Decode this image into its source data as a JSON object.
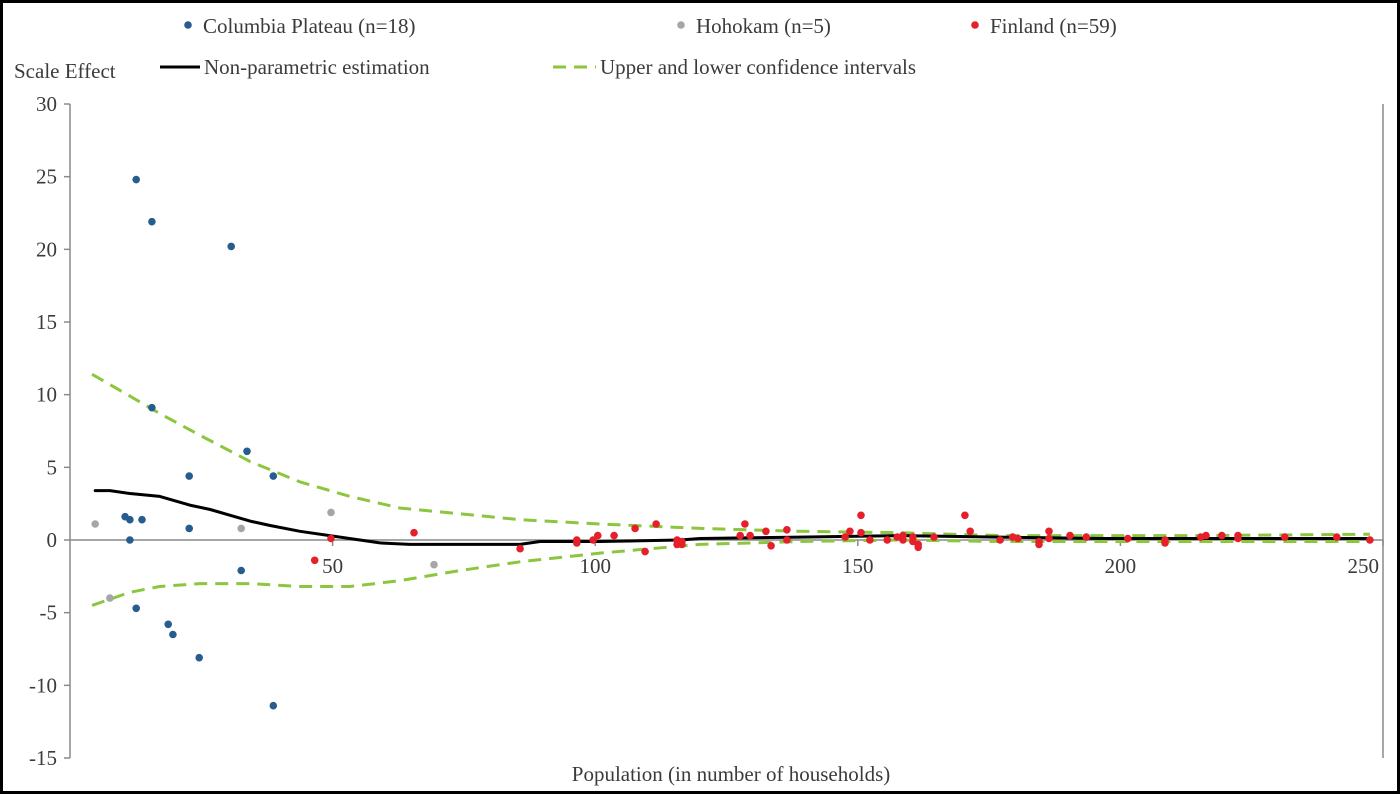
{
  "chart_data": {
    "type": "scatter",
    "title": "",
    "ylabel": "Scale Effect",
    "xlabel": "Population (in number of households)",
    "xlim": [
      0,
      250
    ],
    "ylim": [
      -15,
      30
    ],
    "xticks": [
      50,
      100,
      150,
      200,
      250
    ],
    "yticks": [
      30,
      25,
      20,
      15,
      10,
      5,
      0,
      -5,
      -10,
      -15
    ],
    "grid": false,
    "legend": "top",
    "series": [
      {
        "name": "Columbia Plateau (n=18)",
        "color": "#275d8e",
        "points": [
          [
            12.6,
            24.8
          ],
          [
            15.6,
            21.9
          ],
          [
            30.7,
            20.2
          ],
          [
            15.6,
            9.1
          ],
          [
            33.7,
            6.1
          ],
          [
            22.7,
            4.4
          ],
          [
            38.7,
            4.4
          ],
          [
            10.5,
            1.6
          ],
          [
            11.4,
            1.4
          ],
          [
            13.7,
            1.4
          ],
          [
            22.7,
            0.8
          ],
          [
            11.4,
            0.0
          ],
          [
            32.6,
            -2.1
          ],
          [
            12.6,
            -4.7
          ],
          [
            18.7,
            -5.8
          ],
          [
            19.6,
            -6.5
          ],
          [
            24.6,
            -8.1
          ],
          [
            38.7,
            -11.4
          ]
        ]
      },
      {
        "name": "Hohokam (n=5)",
        "color": "#a6a6a6",
        "points": [
          [
            4.8,
            1.1
          ],
          [
            32.6,
            0.8
          ],
          [
            49.7,
            1.9
          ],
          [
            7.6,
            -4.0
          ],
          [
            69.3,
            -1.7
          ]
        ]
      },
      {
        "name": "Finland (n=59)",
        "color": "#e5202a",
        "points": [
          [
            46.6,
            -1.4
          ],
          [
            49.7,
            0.1
          ],
          [
            65.5,
            0.5
          ],
          [
            85.7,
            -0.6
          ],
          [
            96.5,
            0.0
          ],
          [
            96.5,
            -0.2
          ],
          [
            99.6,
            0.0
          ],
          [
            100.5,
            0.3
          ],
          [
            103.6,
            0.3
          ],
          [
            107.6,
            0.8
          ],
          [
            109.5,
            -0.8
          ],
          [
            111.6,
            1.1
          ],
          [
            115.6,
            0.0
          ],
          [
            115.6,
            -0.3
          ],
          [
            116.5,
            -0.1
          ],
          [
            116.5,
            -0.3
          ],
          [
            127.6,
            0.3
          ],
          [
            128.5,
            1.1
          ],
          [
            129.5,
            0.3
          ],
          [
            132.5,
            0.6
          ],
          [
            133.5,
            -0.4
          ],
          [
            136.5,
            0.7
          ],
          [
            136.5,
            0.0
          ],
          [
            147.6,
            0.2
          ],
          [
            148.5,
            0.6
          ],
          [
            150.6,
            1.7
          ],
          [
            150.6,
            0.5
          ],
          [
            152.3,
            0.0
          ],
          [
            155.6,
            0.0
          ],
          [
            157.5,
            0.2
          ],
          [
            158.6,
            0.0
          ],
          [
            158.6,
            0.3
          ],
          [
            160.5,
            0.2
          ],
          [
            160.5,
            -0.1
          ],
          [
            161.5,
            -0.3
          ],
          [
            161.5,
            -0.5
          ],
          [
            164.5,
            0.2
          ],
          [
            170.4,
            1.7
          ],
          [
            171.4,
            0.6
          ],
          [
            177.1,
            0.0
          ],
          [
            179.5,
            0.2
          ],
          [
            180.5,
            0.1
          ],
          [
            184.5,
            -0.1
          ],
          [
            184.5,
            -0.3
          ],
          [
            186.4,
            0.6
          ],
          [
            186.4,
            0.1
          ],
          [
            190.4,
            0.3
          ],
          [
            193.5,
            0.2
          ],
          [
            201.4,
            0.1
          ],
          [
            208.5,
            0.0
          ],
          [
            208.5,
            -0.2
          ],
          [
            215.3,
            0.2
          ],
          [
            216.3,
            0.3
          ],
          [
            219.3,
            0.3
          ],
          [
            222.4,
            0.3
          ],
          [
            222.4,
            0.1
          ],
          [
            231.3,
            0.2
          ],
          [
            241.2,
            0.2
          ],
          [
            247.5,
            0.0
          ]
        ]
      }
    ],
    "lines": [
      {
        "name": "Non-parametric estimation",
        "color": "#000000",
        "style": "solid",
        "points": [
          [
            4.8,
            3.4
          ],
          [
            7.6,
            3.4
          ],
          [
            11.4,
            3.2
          ],
          [
            17.1,
            3.0
          ],
          [
            22.8,
            2.4
          ],
          [
            26.7,
            2.1
          ],
          [
            30.5,
            1.7
          ],
          [
            34.3,
            1.3
          ],
          [
            38.1,
            1.0
          ],
          [
            43.8,
            0.6
          ],
          [
            51.4,
            0.2
          ],
          [
            59.0,
            -0.2
          ],
          [
            64.7,
            -0.3
          ],
          [
            72.4,
            -0.3
          ],
          [
            85.7,
            -0.3
          ],
          [
            89.5,
            -0.1
          ],
          [
            100.9,
            -0.1
          ],
          [
            116.1,
            0.0
          ],
          [
            120.0,
            0.1
          ],
          [
            139.0,
            0.2
          ],
          [
            158.0,
            0.3
          ],
          [
            177.1,
            0.2
          ],
          [
            196.1,
            0.1
          ],
          [
            215.2,
            0.1
          ],
          [
            247.5,
            0.1
          ]
        ]
      },
      {
        "name": "Upper and lower confidence intervals",
        "color": "#8cc63f",
        "style": "dashed",
        "upper": [
          [
            4.2,
            11.4
          ],
          [
            11.4,
            9.9
          ],
          [
            17.1,
            8.7
          ],
          [
            24.8,
            7.2
          ],
          [
            34.3,
            5.4
          ],
          [
            43.8,
            4.0
          ],
          [
            53.3,
            3.0
          ],
          [
            62.8,
            2.2
          ],
          [
            74.3,
            1.8
          ],
          [
            85.7,
            1.4
          ],
          [
            100.9,
            1.1
          ],
          [
            120.0,
            0.8
          ],
          [
            139.0,
            0.6
          ],
          [
            158.0,
            0.5
          ],
          [
            177.1,
            0.3
          ],
          [
            196.1,
            0.3
          ],
          [
            215.2,
            0.3
          ],
          [
            247.5,
            0.4
          ]
        ],
        "lower": [
          [
            4.2,
            -4.5
          ],
          [
            11.4,
            -3.6
          ],
          [
            17.1,
            -3.2
          ],
          [
            24.8,
            -3.0
          ],
          [
            34.3,
            -3.0
          ],
          [
            43.8,
            -3.2
          ],
          [
            53.3,
            -3.2
          ],
          [
            62.8,
            -2.8
          ],
          [
            74.3,
            -2.1
          ],
          [
            85.7,
            -1.5
          ],
          [
            100.9,
            -0.9
          ],
          [
            120.0,
            -0.3
          ],
          [
            139.0,
            -0.1
          ],
          [
            158.0,
            0.0
          ],
          [
            177.1,
            -0.1
          ],
          [
            196.1,
            -0.1
          ],
          [
            215.2,
            -0.1
          ],
          [
            247.5,
            -0.1
          ]
        ]
      }
    ]
  }
}
